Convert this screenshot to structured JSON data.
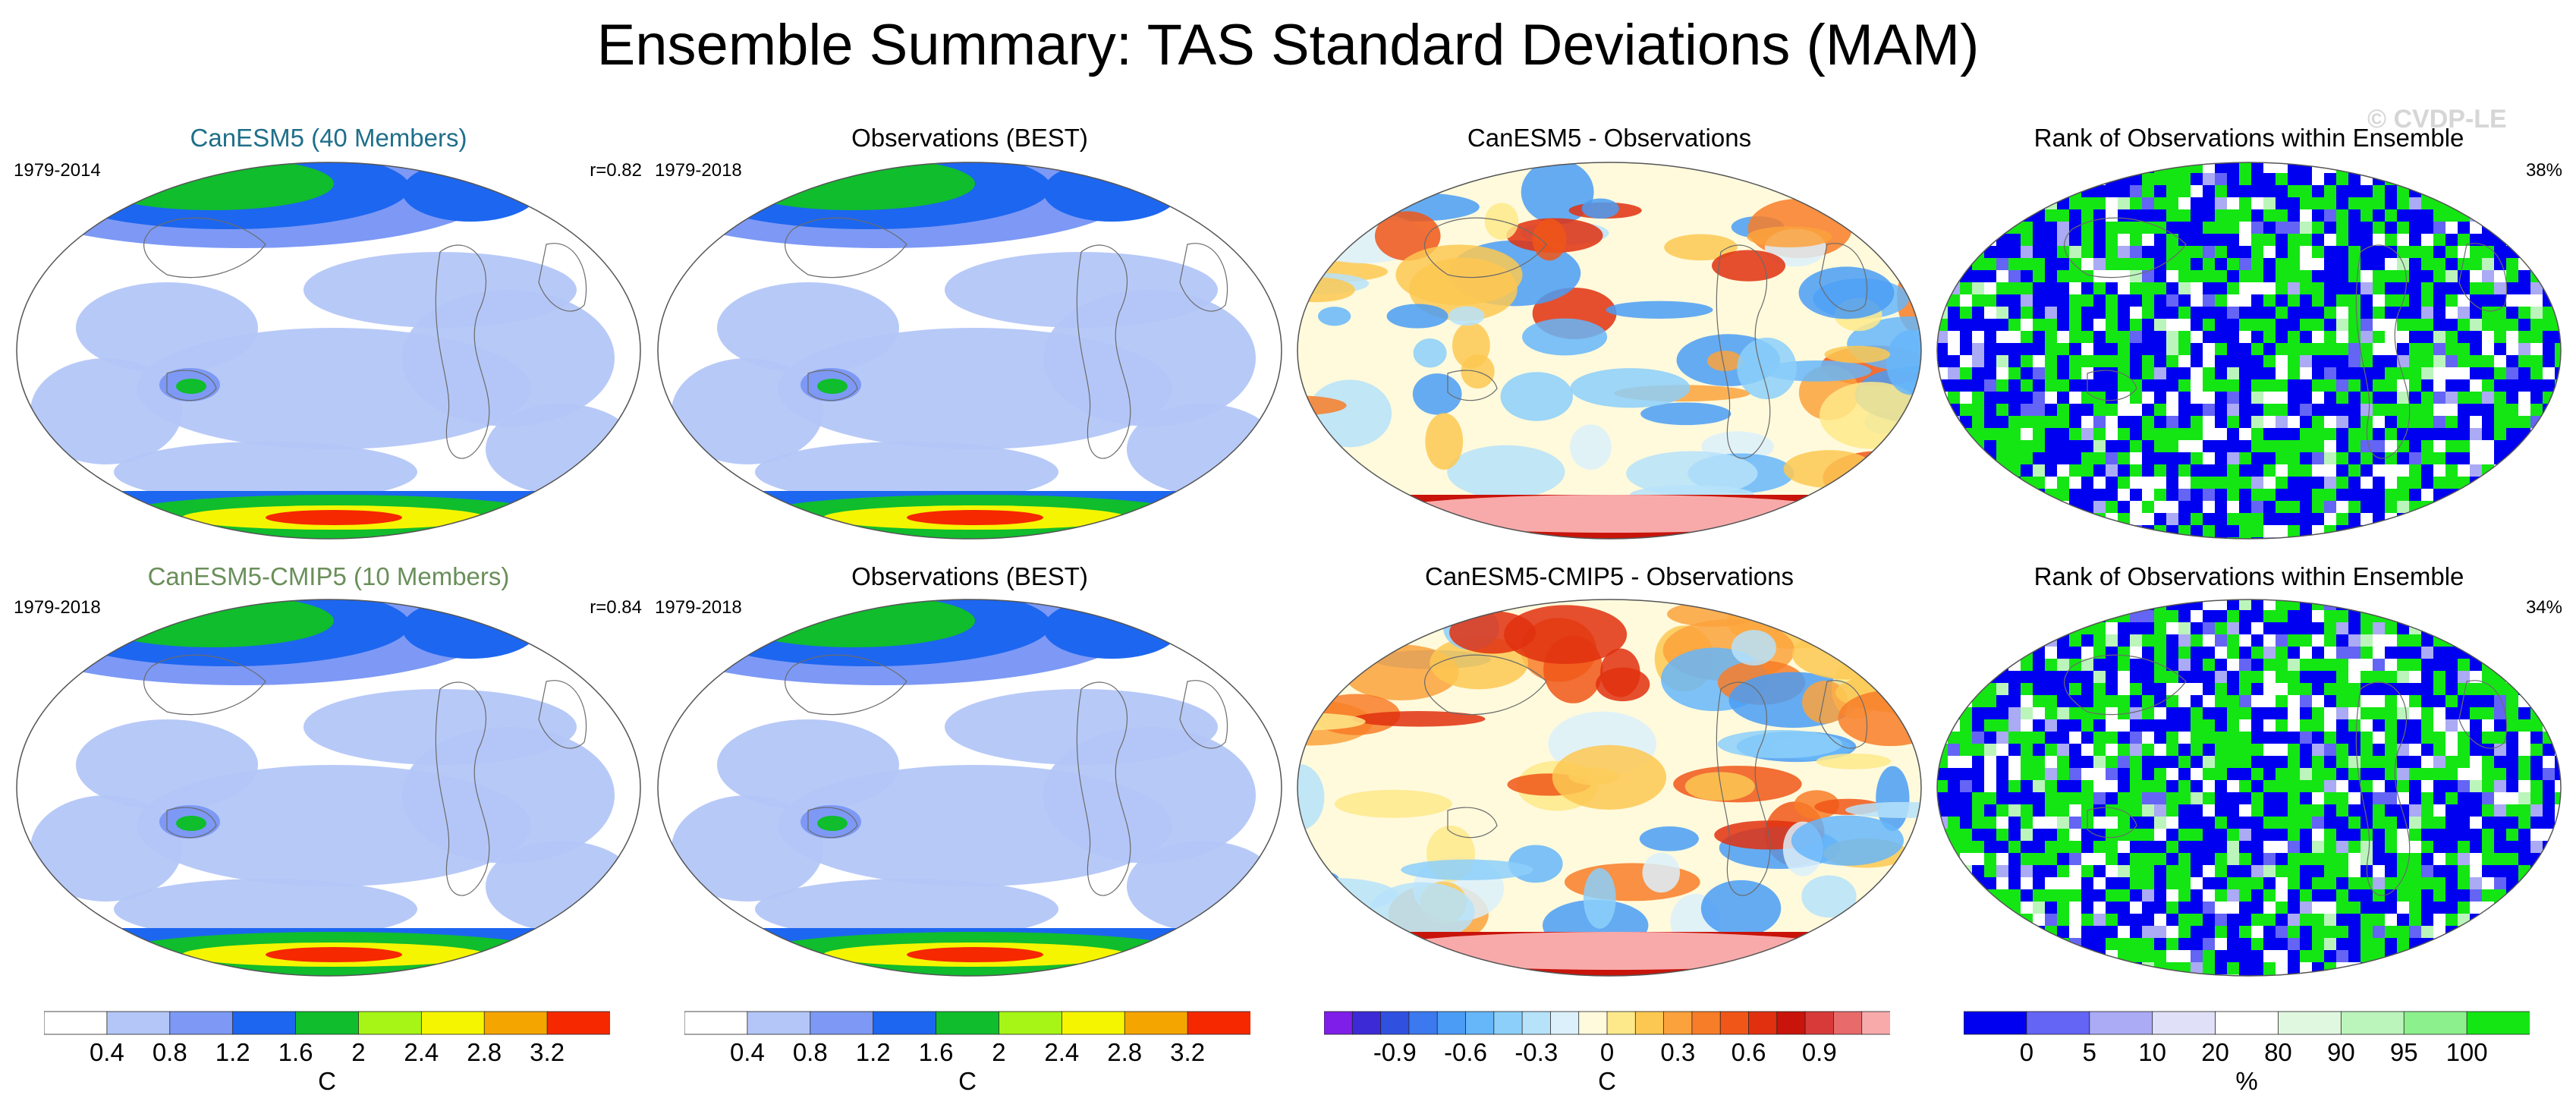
{
  "title": "Ensemble Summary: TAS Standard Deviations (MAM)",
  "watermark": "© CVDP-LE",
  "colors": {
    "title_model": "#1f6f8a",
    "title_cmip5": "#6a8f5a",
    "land": "#6b6b6b"
  },
  "chart_data": [
    {
      "type": "heatmap",
      "row": 1,
      "col": 1,
      "title": "CanESM5 (40 Members)",
      "left_label": "1979-2014",
      "right_label": "r=0.82",
      "units": "C",
      "colormap": "stddev"
    },
    {
      "type": "heatmap",
      "row": 1,
      "col": 2,
      "title": "Observations (BEST)",
      "left_label": "1979-2018",
      "right_label": "",
      "units": "C",
      "colormap": "stddev"
    },
    {
      "type": "heatmap",
      "row": 1,
      "col": 3,
      "title": "CanESM5 - Observations",
      "left_label": "",
      "right_label": "",
      "units": "C",
      "colormap": "difference"
    },
    {
      "type": "heatmap",
      "row": 1,
      "col": 4,
      "title": "Rank of Observations within Ensemble",
      "left_label": "",
      "right_label": "38%",
      "units": "%",
      "colormap": "rank"
    },
    {
      "type": "heatmap",
      "row": 2,
      "col": 1,
      "title": "CanESM5-CMIP5 (10 Members)",
      "left_label": "1979-2018",
      "right_label": "r=0.84",
      "units": "C",
      "colormap": "stddev"
    },
    {
      "type": "heatmap",
      "row": 2,
      "col": 2,
      "title": "Observations (BEST)",
      "left_label": "1979-2018",
      "right_label": "",
      "units": "C",
      "colormap": "stddev"
    },
    {
      "type": "heatmap",
      "row": 2,
      "col": 3,
      "title": "CanESM5-CMIP5 - Observations",
      "left_label": "",
      "right_label": "",
      "units": "C",
      "colormap": "difference"
    },
    {
      "type": "heatmap",
      "row": 2,
      "col": 4,
      "title": "Rank of Observations within Ensemble",
      "left_label": "",
      "right_label": "34%",
      "units": "%",
      "colormap": "rank"
    }
  ],
  "colorbars": {
    "stddev": {
      "colors": [
        "#ffffff",
        "#b3c6f7",
        "#7d99f5",
        "#1d66f0",
        "#0fbd2d",
        "#a6f516",
        "#f5f500",
        "#f5a500",
        "#f52800"
      ],
      "tick_labels": [
        "0.4",
        "0.8",
        "1.2",
        "1.6",
        "2",
        "2.4",
        "2.8",
        "3.2"
      ],
      "units": "C"
    },
    "difference": {
      "colors": [
        "#7e1ee8",
        "#3c2ad6",
        "#3050e0",
        "#3c78ee",
        "#4a9cf5",
        "#66b6fa",
        "#8ccffa",
        "#b6e2fa",
        "#dcf0fb",
        "#fffadc",
        "#fee98a",
        "#fdc852",
        "#fca23c",
        "#f87d28",
        "#f05618",
        "#e0300f",
        "#c8140a",
        "#d83a3a",
        "#e86a6a",
        "#f8aaaa"
      ],
      "tick_labels": [
        "-0.9",
        "-0.6",
        "-0.3",
        "0",
        "0.3",
        "0.6",
        "0.9"
      ],
      "units": "C"
    },
    "rank": {
      "colors": [
        "#0000f0",
        "#6464f5",
        "#aaaaf5",
        "#e0e0f8",
        "#ffffff",
        "#e0f8e0",
        "#bbf5bb",
        "#8cf08c",
        "#14e614"
      ],
      "tick_labels": [
        "0",
        "5",
        "10",
        "20",
        "80",
        "90",
        "95",
        "100"
      ],
      "units": "%"
    }
  }
}
